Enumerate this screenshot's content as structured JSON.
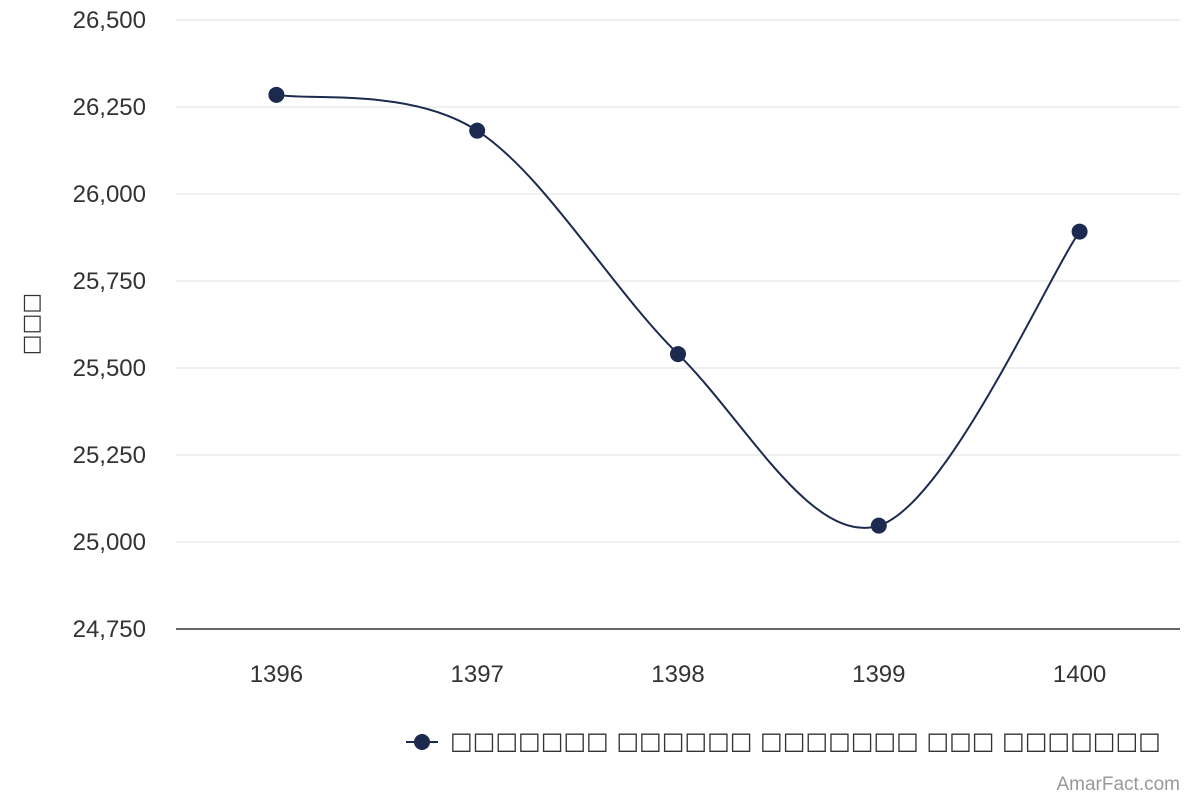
{
  "chart_data": {
    "type": "line",
    "categories": [
      "1396",
      "1397",
      "1398",
      "1399",
      "1400"
    ],
    "series": [
      {
        "name": "□□□□□□□ □□□□□□ □□□□□□□ □□□ □□□□□□□",
        "values": [
          26285,
          26182,
          25540,
          25047,
          25892
        ],
        "color": "#1b2a4e"
      }
    ],
    "ylabel": "□□□",
    "ylim": [
      24750,
      26500
    ],
    "yticks": [
      24750,
      25000,
      25250,
      25500,
      25750,
      26000,
      26250,
      26500
    ],
    "grid": true,
    "legend": "bottom-center",
    "smooth": true
  },
  "credit": "AmarFact.com",
  "colors": {
    "line": "#1b2a4e",
    "grid": "#e0e0e0",
    "axis": "#333333",
    "text": "#333333",
    "credit": "#999999"
  }
}
